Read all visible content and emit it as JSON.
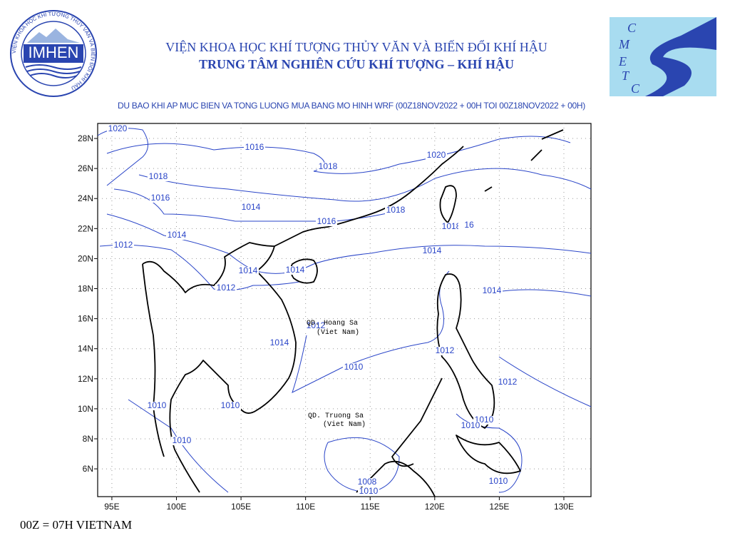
{
  "header": {
    "title_line1": "VIỆN KHOA HỌC KHÍ TƯỢNG THỦY VĂN VÀ BIẾN ĐỔI KHÍ HẬU",
    "title_line2": "TRUNG TÂM NGHIÊN CỨU KHÍ TƯỢNG – KHÍ HẬU",
    "logo_left_text": "IMHEN",
    "logo_left_ring": "VIỆN KHOA HỌC KHÍ TƯỢNG THỦY VĂN VÀ BIẾN ĐỔI KHÍ HẬU",
    "logo_right_letters": [
      "C",
      "M",
      "E",
      "T",
      "C"
    ]
  },
  "map": {
    "title": "DU BAO KHI AP MUC BIEN VA TONG LUONG MUA BANG MO HINH WRF (00Z18NOV2022 + 00H TOI 00Z18NOV2022 + 00H)",
    "xlim": [
      93.9,
      132.1
    ],
    "ylim": [
      4.15,
      29.0
    ],
    "xticks": [
      {
        "value": 95,
        "label": "95E"
      },
      {
        "value": 100,
        "label": "100E"
      },
      {
        "value": 105,
        "label": "105E"
      },
      {
        "value": 110,
        "label": "110E"
      },
      {
        "value": 115,
        "label": "115E"
      },
      {
        "value": 120,
        "label": "120E"
      },
      {
        "value": 125,
        "label": "125E"
      },
      {
        "value": 130,
        "label": "130E"
      }
    ],
    "yticks": [
      {
        "value": 6,
        "label": "6N"
      },
      {
        "value": 8,
        "label": "8N"
      },
      {
        "value": 10,
        "label": "10N"
      },
      {
        "value": 12,
        "label": "12N"
      },
      {
        "value": 14,
        "label": "14N"
      },
      {
        "value": 16,
        "label": "16N"
      },
      {
        "value": 18,
        "label": "18N"
      },
      {
        "value": 20,
        "label": "20N"
      },
      {
        "value": 22,
        "label": "22N"
      },
      {
        "value": 24,
        "label": "24N"
      },
      {
        "value": 26,
        "label": "26N"
      },
      {
        "value": 28,
        "label": "28N"
      }
    ],
    "grid": true,
    "contour_color": "#2a45c8",
    "contour_labels": [
      1020,
      1016,
      1018,
      1018,
      1020,
      1016,
      1014,
      1018,
      1016,
      1014,
      1018,
      16,
      1012,
      1014,
      1014,
      1014,
      1012,
      1014,
      1012,
      1014,
      1012,
      1010,
      1012,
      1010,
      1010,
      1010,
      1010,
      1010,
      1008,
      1010,
      1010
    ],
    "place_labels": [
      "QD. Hoang Sa",
      "(Viet Nam)",
      "QD. Truong Sa",
      "(Viet Nam)"
    ]
  },
  "footer": "00Z = 07H VIETNAM"
}
